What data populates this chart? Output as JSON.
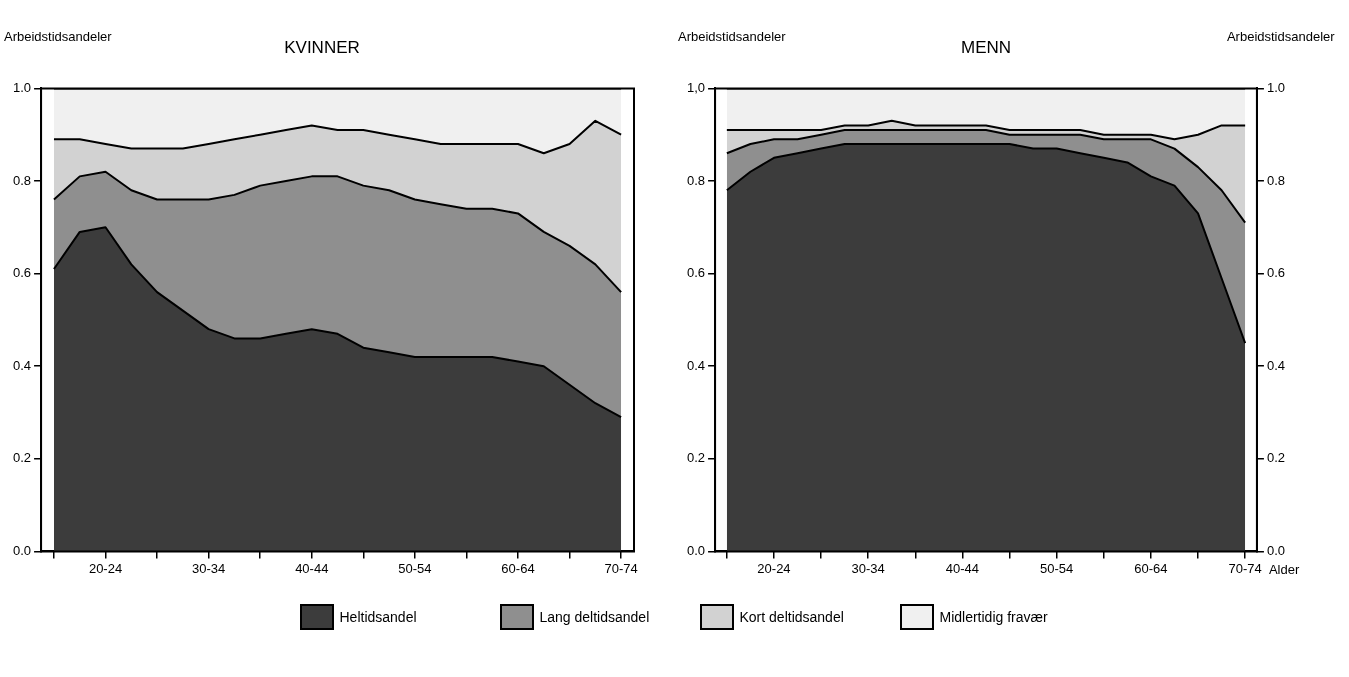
{
  "chart_data": [
    {
      "type": "area",
      "title": "KVINNER",
      "ylabel": "Arbeidstidsandeler",
      "stacked": true,
      "ylim": [
        0,
        1
      ],
      "yticks": [
        {
          "value": 0,
          "label": "0.0"
        },
        {
          "value": 0.2,
          "label": "0.2"
        },
        {
          "value": 0.4,
          "label": "0.4"
        },
        {
          "value": 0.6,
          "label": "0.6"
        },
        {
          "value": 0.8,
          "label": "0.8"
        },
        {
          "value": 1,
          "label": "1.0"
        }
      ],
      "categories": [
        null,
        null,
        "20-24",
        null,
        null,
        null,
        "30-34",
        null,
        null,
        null,
        "40-44",
        null,
        null,
        null,
        "50-54",
        null,
        null,
        null,
        "60-64",
        null,
        null,
        null,
        "70-74"
      ],
      "series": [
        {
          "color": "#3c3c3c",
          "values": [
            0.61,
            0.69,
            0.7,
            0.62,
            0.56,
            0.52,
            0.48,
            0.46,
            0.46,
            0.47,
            0.48,
            0.47,
            0.44,
            0.43,
            0.42,
            0.42,
            0.42,
            0.42,
            0.41,
            0.4,
            0.36,
            0.32,
            0.29
          ]
        },
        {
          "color": "#8f8f8f",
          "values": [
            0.15,
            0.12,
            0.12,
            0.16,
            0.2,
            0.24,
            0.28,
            0.31,
            0.33,
            0.33,
            0.33,
            0.34,
            0.35,
            0.35,
            0.34,
            0.33,
            0.32,
            0.32,
            0.32,
            0.29,
            0.3,
            0.3,
            0.27
          ]
        },
        {
          "color": "#d2d2d2",
          "values": [
            0.13,
            0.08,
            0.06,
            0.09,
            0.11,
            0.11,
            0.12,
            0.12,
            0.11,
            0.11,
            0.11,
            0.1,
            0.12,
            0.12,
            0.13,
            0.13,
            0.14,
            0.14,
            0.15,
            0.17,
            0.22,
            0.31,
            0.34
          ]
        },
        {
          "color": "#f0f0f0",
          "values": [
            0.11,
            0.11,
            0.12,
            0.13,
            0.13,
            0.13,
            0.12,
            0.11,
            0.1,
            0.09,
            0.08,
            0.09,
            0.09,
            0.1,
            0.11,
            0.12,
            0.12,
            0.12,
            0.12,
            0.14,
            0.12,
            0.07,
            0.1
          ]
        }
      ]
    },
    {
      "type": "area",
      "title": "MENN",
      "ylabel": "Arbeidstidsandeler",
      "y2label": "Arbeidstidsandeler",
      "xlabel": "Alder",
      "stacked": true,
      "legend": "bottom",
      "ylim": [
        0,
        1
      ],
      "y2lim": [
        0,
        1
      ],
      "yticks": [
        {
          "value": 0,
          "label": "0.0"
        },
        {
          "value": 0.2,
          "label": "0.2"
        },
        {
          "value": 0.4,
          "label": "0.4"
        },
        {
          "value": 0.6,
          "label": "0.6"
        },
        {
          "value": 0.8,
          "label": "0.8"
        },
        {
          "value": 1,
          "label": "1,0"
        }
      ],
      "y2ticks": [
        {
          "value": 0,
          "label": "0.0"
        },
        {
          "value": 0.2,
          "label": "0.2"
        },
        {
          "value": 0.4,
          "label": "0.4"
        },
        {
          "value": 0.6,
          "label": "0.6"
        },
        {
          "value": 0.8,
          "label": "0.8"
        },
        {
          "value": 1,
          "label": "1.0"
        }
      ],
      "categories": [
        null,
        null,
        "20-24",
        null,
        null,
        null,
        "30-34",
        null,
        null,
        null,
        "40-44",
        null,
        null,
        null,
        "50-54",
        null,
        null,
        null,
        "60-64",
        null,
        null,
        null,
        "70-74"
      ],
      "series": [
        {
          "name": "Heltidsandel",
          "color": "#3c3c3c",
          "values": [
            0.78,
            0.82,
            0.85,
            0.86,
            0.87,
            0.88,
            0.88,
            0.88,
            0.88,
            0.88,
            0.88,
            0.88,
            0.88,
            0.87,
            0.87,
            0.86,
            0.85,
            0.84,
            0.81,
            0.79,
            0.73,
            0.59,
            0.45
          ]
        },
        {
          "name": "Lang deltidsandel",
          "color": "#8f8f8f",
          "values": [
            0.08,
            0.06,
            0.04,
            0.03,
            0.03,
            0.03,
            0.03,
            0.03,
            0.03,
            0.03,
            0.03,
            0.03,
            0.02,
            0.03,
            0.03,
            0.04,
            0.04,
            0.05,
            0.08,
            0.08,
            0.1,
            0.19,
            0.26
          ]
        },
        {
          "name": "Kort deltidsandel",
          "color": "#d2d2d2",
          "values": [
            0.05,
            0.03,
            0.02,
            0.02,
            0.01,
            0.01,
            0.01,
            0.02,
            0.01,
            0.01,
            0.01,
            0.01,
            0.01,
            0.01,
            0.01,
            0.01,
            0.01,
            0.01,
            0.01,
            0.02,
            0.07,
            0.14,
            0.21
          ]
        },
        {
          "name": "Midlertidig fravær",
          "color": "#f0f0f0",
          "values": [
            0.09,
            0.09,
            0.09,
            0.09,
            0.09,
            0.08,
            0.08,
            0.07,
            0.08,
            0.08,
            0.08,
            0.08,
            0.09,
            0.09,
            0.09,
            0.09,
            0.1,
            0.1,
            0.1,
            0.11,
            0.1,
            0.08,
            0.08
          ]
        }
      ]
    }
  ]
}
